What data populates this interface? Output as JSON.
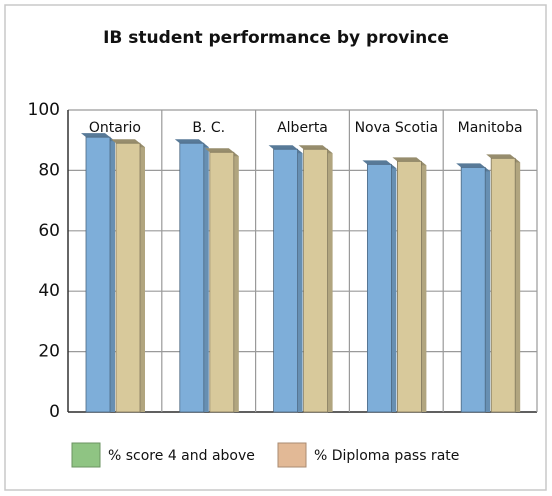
{
  "chart_data": {
    "type": "bar",
    "title": "IB student performance by province",
    "categories": [
      "Ontario",
      "B. C.",
      "Alberta",
      "Nova Scotia",
      "Manitoba"
    ],
    "series": [
      {
        "name": "% score 4 and above",
        "color": "#7eaed9",
        "legend_color": "#8fc483",
        "values": [
          91,
          89,
          87,
          82,
          81
        ]
      },
      {
        "name": "% Diploma pass rate",
        "color": "#d8c99b",
        "legend_color": "#e2b996",
        "values": [
          89,
          86,
          87,
          83,
          84
        ]
      }
    ],
    "ylim": [
      0,
      100
    ],
    "yticks": [
      0,
      20,
      40,
      60,
      80,
      100
    ],
    "grid": true
  }
}
